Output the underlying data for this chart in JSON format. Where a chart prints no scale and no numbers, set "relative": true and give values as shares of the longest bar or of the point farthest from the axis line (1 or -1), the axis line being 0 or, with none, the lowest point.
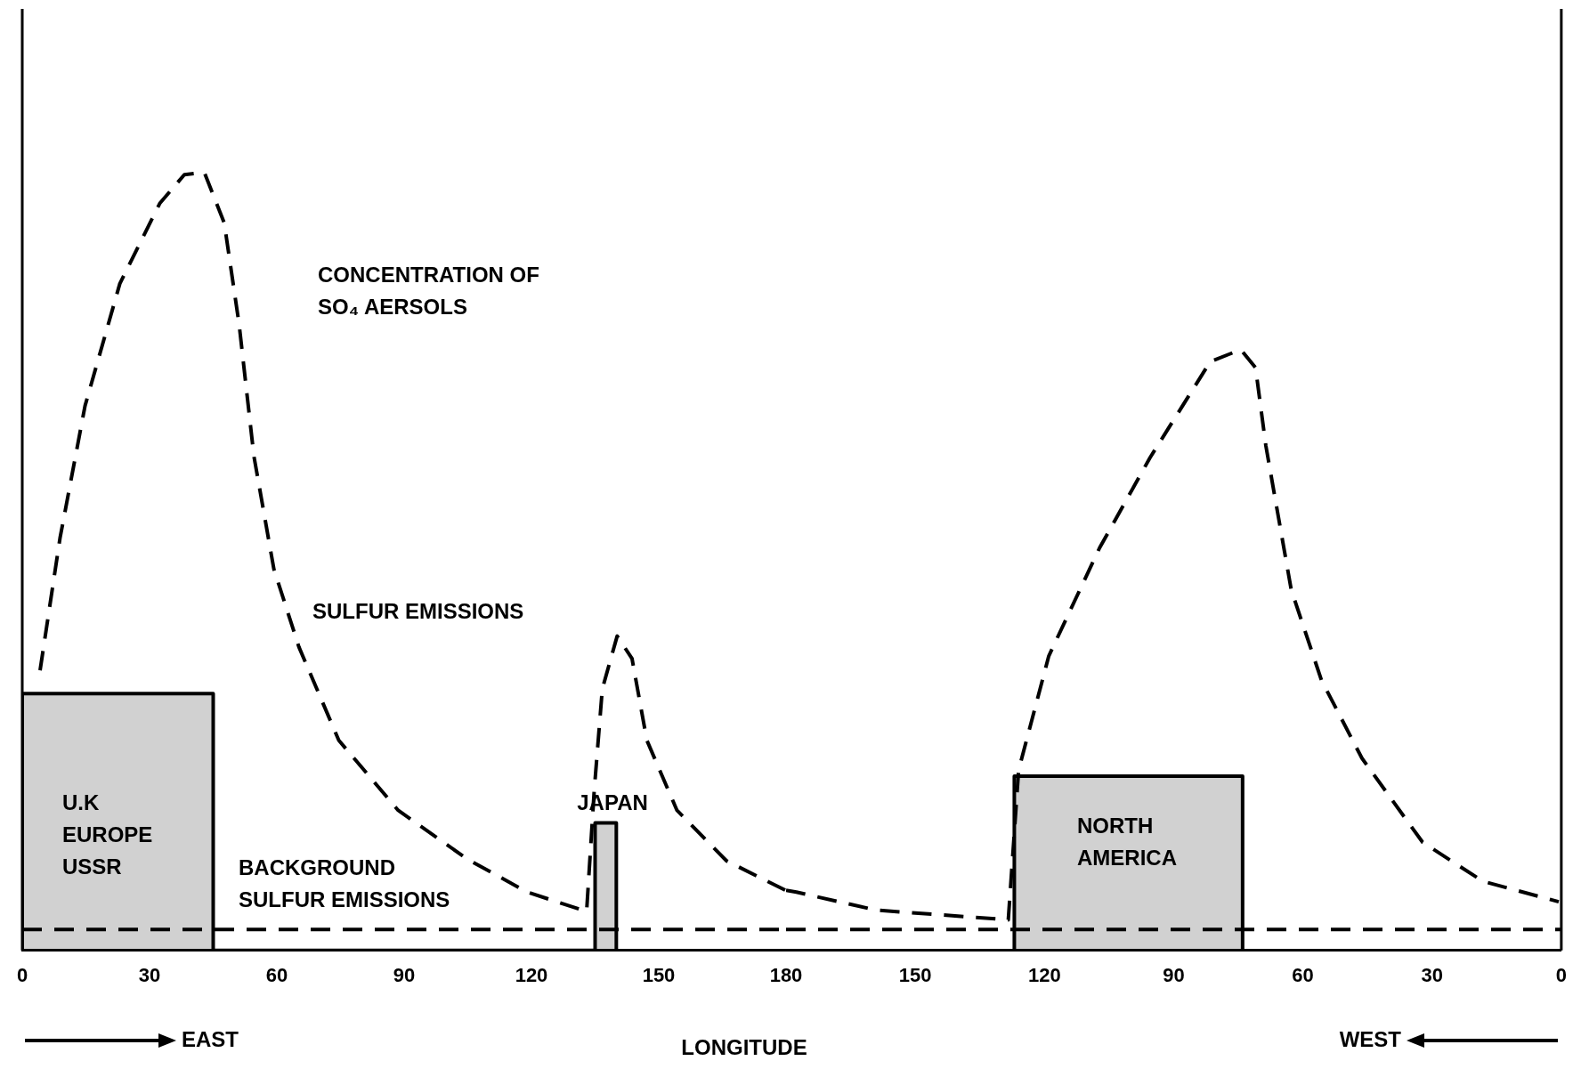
{
  "chart_data": [
    {
      "type": "line",
      "relative": true,
      "xlabel": "LONGITUDE",
      "xlim": [
        0,
        180
      ],
      "xticks": [
        0,
        30,
        60,
        90,
        120,
        150,
        180
      ],
      "marker": "none",
      "line_style": "dashed",
      "series": [
        {
          "type": "line",
          "color": "#000000",
          "x": [
            4.2,
            8.9,
            14.8,
            23,
            32.4,
            38.2,
            42.9,
            47.6,
            51.1,
            54.6,
            59.3,
            65.2,
            74.6,
            88.6,
            105,
            119,
            133,
            134.8,
            136.7,
            140.2,
            143.7,
            147.2,
            154.3,
            166,
            180
          ],
          "values": [
            0.36,
            0.53,
            0.7,
            0.857,
            0.96,
            0.997,
            1,
            0.935,
            0.805,
            0.635,
            0.49,
            0.39,
            0.27,
            0.18,
            0.117,
            0.075,
            0.05,
            0.206,
            0.336,
            0.404,
            0.375,
            0.27,
            0.18,
            0.115,
            0.077
          ]
        },
        {
          "type": "area",
          "color": "#000000",
          "line_style": "solid",
          "x": [
            0,
            0,
            45,
            45,
            135,
            135,
            140,
            140
          ],
          "values": [
            0,
            0.33,
            0.33,
            0,
            0,
            0.164,
            0.164,
            0
          ]
        },
        {
          "type": "line",
          "color": "#000000",
          "x": [
            0,
            180
          ],
          "values": [
            0.027,
            0.027
          ]
        }
      ],
      "annotations": [
        "CONCENTRATION OF\nSO₄ AERSOLS",
        "SULFUR EMISSIONS",
        "U.K\nEUROPE\nUSSR",
        "JAPAN",
        "BACKGROUND\nSULFUR EMISSIONS",
        "EAST"
      ]
    },
    {
      "type": "line",
      "relative": true,
      "xlim": [
        180,
        0
      ],
      "xticks": [
        150,
        120,
        90,
        60,
        30,
        0
      ],
      "marker": "none",
      "line_style": "dashed",
      "series": [
        {
          "type": "line",
          "color": "#000000",
          "x": [
            180,
            177.6,
            159,
            128.4,
            126,
            119,
            107.2,
            95.5,
            81.5,
            74.4,
            71,
            68.6,
            62.7,
            55.7,
            46.3,
            32.2,
            18.2,
            0.6
          ],
          "values": [
            0.1,
            0.097,
            0.067,
            0.051,
            0.3,
            0.49,
            0.67,
            0.82,
            0.98,
            1,
            0.97,
            0.84,
            0.6,
            0.45,
            0.32,
            0.18,
            0.115,
            0.081
          ]
        },
        {
          "type": "area",
          "color": "#000000",
          "line_style": "solid",
          "x": [
            127,
            127,
            74,
            74
          ],
          "values": [
            0,
            0.29,
            0.29,
            0
          ]
        },
        {
          "type": "line",
          "color": "#000000",
          "x": [
            180,
            0
          ],
          "values": [
            0.035,
            0.035
          ]
        }
      ],
      "annotations": [
        "NORTH\nAMERICA",
        "WEST"
      ]
    }
  ]
}
